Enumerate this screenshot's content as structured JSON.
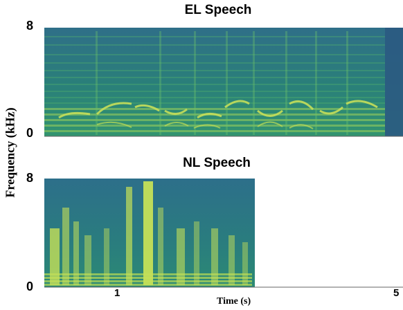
{
  "chart_data": [
    {
      "type": "heatmap",
      "title": "EL Speech",
      "ylabel": "Frequency (kHz)",
      "ylim": [
        0,
        8
      ],
      "y_ticks": [
        "8",
        "0"
      ],
      "xlim": [
        0,
        5
      ],
      "duration_s": 5,
      "colormap": "viridis",
      "notes": "Electrolarynx speech spectrogram; horizontal harmonic bands across the full frequency range."
    },
    {
      "type": "heatmap",
      "title": "NL Speech",
      "ylabel": "Frequency (kHz)",
      "ylim": [
        0,
        8
      ],
      "y_ticks": [
        "8",
        "0"
      ],
      "xlim": [
        0,
        5
      ],
      "duration_s": 3,
      "colormap": "viridis",
      "xlabel": "Time (s)",
      "x_ticks": [
        "1",
        "5"
      ]
    }
  ],
  "labels": {
    "title_el": "EL Speech",
    "title_nl": "NL Speech",
    "ylabel": "Frequency (kHz)",
    "xlabel": "Time (s)",
    "tick_y_top_el": "8",
    "tick_y_bottom_el": "0",
    "tick_y_top_nl": "8",
    "tick_y_bottom_nl": "0",
    "tick_x_1": "1",
    "tick_x_5": "5"
  },
  "colors": {
    "background": "#2a7f78",
    "bright": "#c9e25a",
    "mid": "#3fae6a",
    "dark": "#2a4f7a"
  }
}
